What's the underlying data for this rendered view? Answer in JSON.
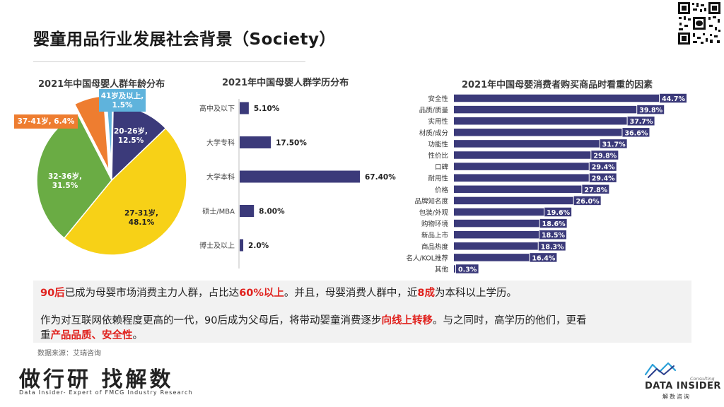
{
  "page": {
    "title": "婴童用品行业发展社会背景（Society）",
    "source": "数据来源：艾瑞咨询"
  },
  "message": {
    "line1": [
      {
        "t": "90后",
        "hl": true
      },
      {
        "t": "已成为母婴市场消费主力人群，占比达",
        "hl": false
      },
      {
        "t": "60%以上",
        "hl": true
      },
      {
        "t": "。并且，母婴消费人群中，近",
        "hl": false
      },
      {
        "t": "8成",
        "hl": true
      },
      {
        "t": "为本科以上学历。",
        "hl": false
      }
    ],
    "line2": [
      {
        "t": "作为对互联网依赖程度更高的一代，90后成为父母后，将带动婴童消费逐步",
        "hl": false
      },
      {
        "t": "向线上转移",
        "hl": true
      },
      {
        "t": "。与之同时，高学历的他们，更看",
        "hl": false
      }
    ],
    "line3": [
      {
        "t": "重",
        "hl": false
      },
      {
        "t": "产品品质、安全性",
        "hl": true
      },
      {
        "t": "。",
        "hl": false
      }
    ]
  },
  "brand": {
    "cn": "做行研 找解数",
    "en": "Data Insider- Expert of FMCG Industry Research"
  },
  "logo": {
    "name": "DATA INSIDER",
    "consulting": "Consulting",
    "cn": "解数咨询"
  },
  "chart_data": [
    {
      "type": "pie",
      "title": "2021年中国母婴人群年龄分布",
      "slices": [
        {
          "label": "20-26岁,",
          "value_label": "12.5%",
          "value": 12.5,
          "color": "#3b3a7a"
        },
        {
          "label": "27-31岁,",
          "value_label": "48.1%",
          "value": 48.1,
          "color": "#f7d117"
        },
        {
          "label": "32-36岁,",
          "value_label": "31.5%",
          "value": 31.5,
          "color": "#6aac44"
        },
        {
          "label": "37-41岁, 6.4%",
          "value_label": "",
          "value": 6.4,
          "color": "#ee7d30"
        },
        {
          "label": "41岁及以上,",
          "value_label": "1.5%",
          "value": 1.5,
          "color": "#5fb3dc"
        }
      ]
    },
    {
      "type": "bar",
      "orientation": "horizontal",
      "title": "2021年中国母婴人群学历分布",
      "color": "#3b3a7a",
      "categories": [
        "高中及以下",
        "大学专科",
        "大学本科",
        "硕士/MBA",
        "博士及以上"
      ],
      "values": [
        5.1,
        17.5,
        67.4,
        8.0,
        2.0
      ],
      "labels": [
        "5.10%",
        "17.50%",
        "67.40%",
        "8.00%",
        "2.0%"
      ]
    },
    {
      "type": "bar",
      "orientation": "horizontal",
      "title": "2021年中国母婴消费者购买商品时看重的因素",
      "color": "#3b3a7a",
      "categories": [
        "安全性",
        "品质/质量",
        "实用性",
        "材质/成分",
        "功能性",
        "性价比",
        "口碑",
        "耐用性",
        "价格",
        "品牌知名度",
        "包装/外观",
        "购物环境",
        "新品上市",
        "商品热度",
        "名人/KOL推荐",
        "其他"
      ],
      "values": [
        44.7,
        39.8,
        37.7,
        36.6,
        31.7,
        29.8,
        29.4,
        29.4,
        27.8,
        26.0,
        19.6,
        18.6,
        18.5,
        18.3,
        16.4,
        0.3
      ],
      "labels": [
        "44.7%",
        "39.8%",
        "37.7%",
        "36.6%",
        "31.7%",
        "29.8%",
        "29.4%",
        "29.4%",
        "27.8%",
        "26.0%",
        "19.6%",
        "18.6%",
        "18.5%",
        "18.3%",
        "16.4%",
        "0.3%"
      ]
    }
  ]
}
